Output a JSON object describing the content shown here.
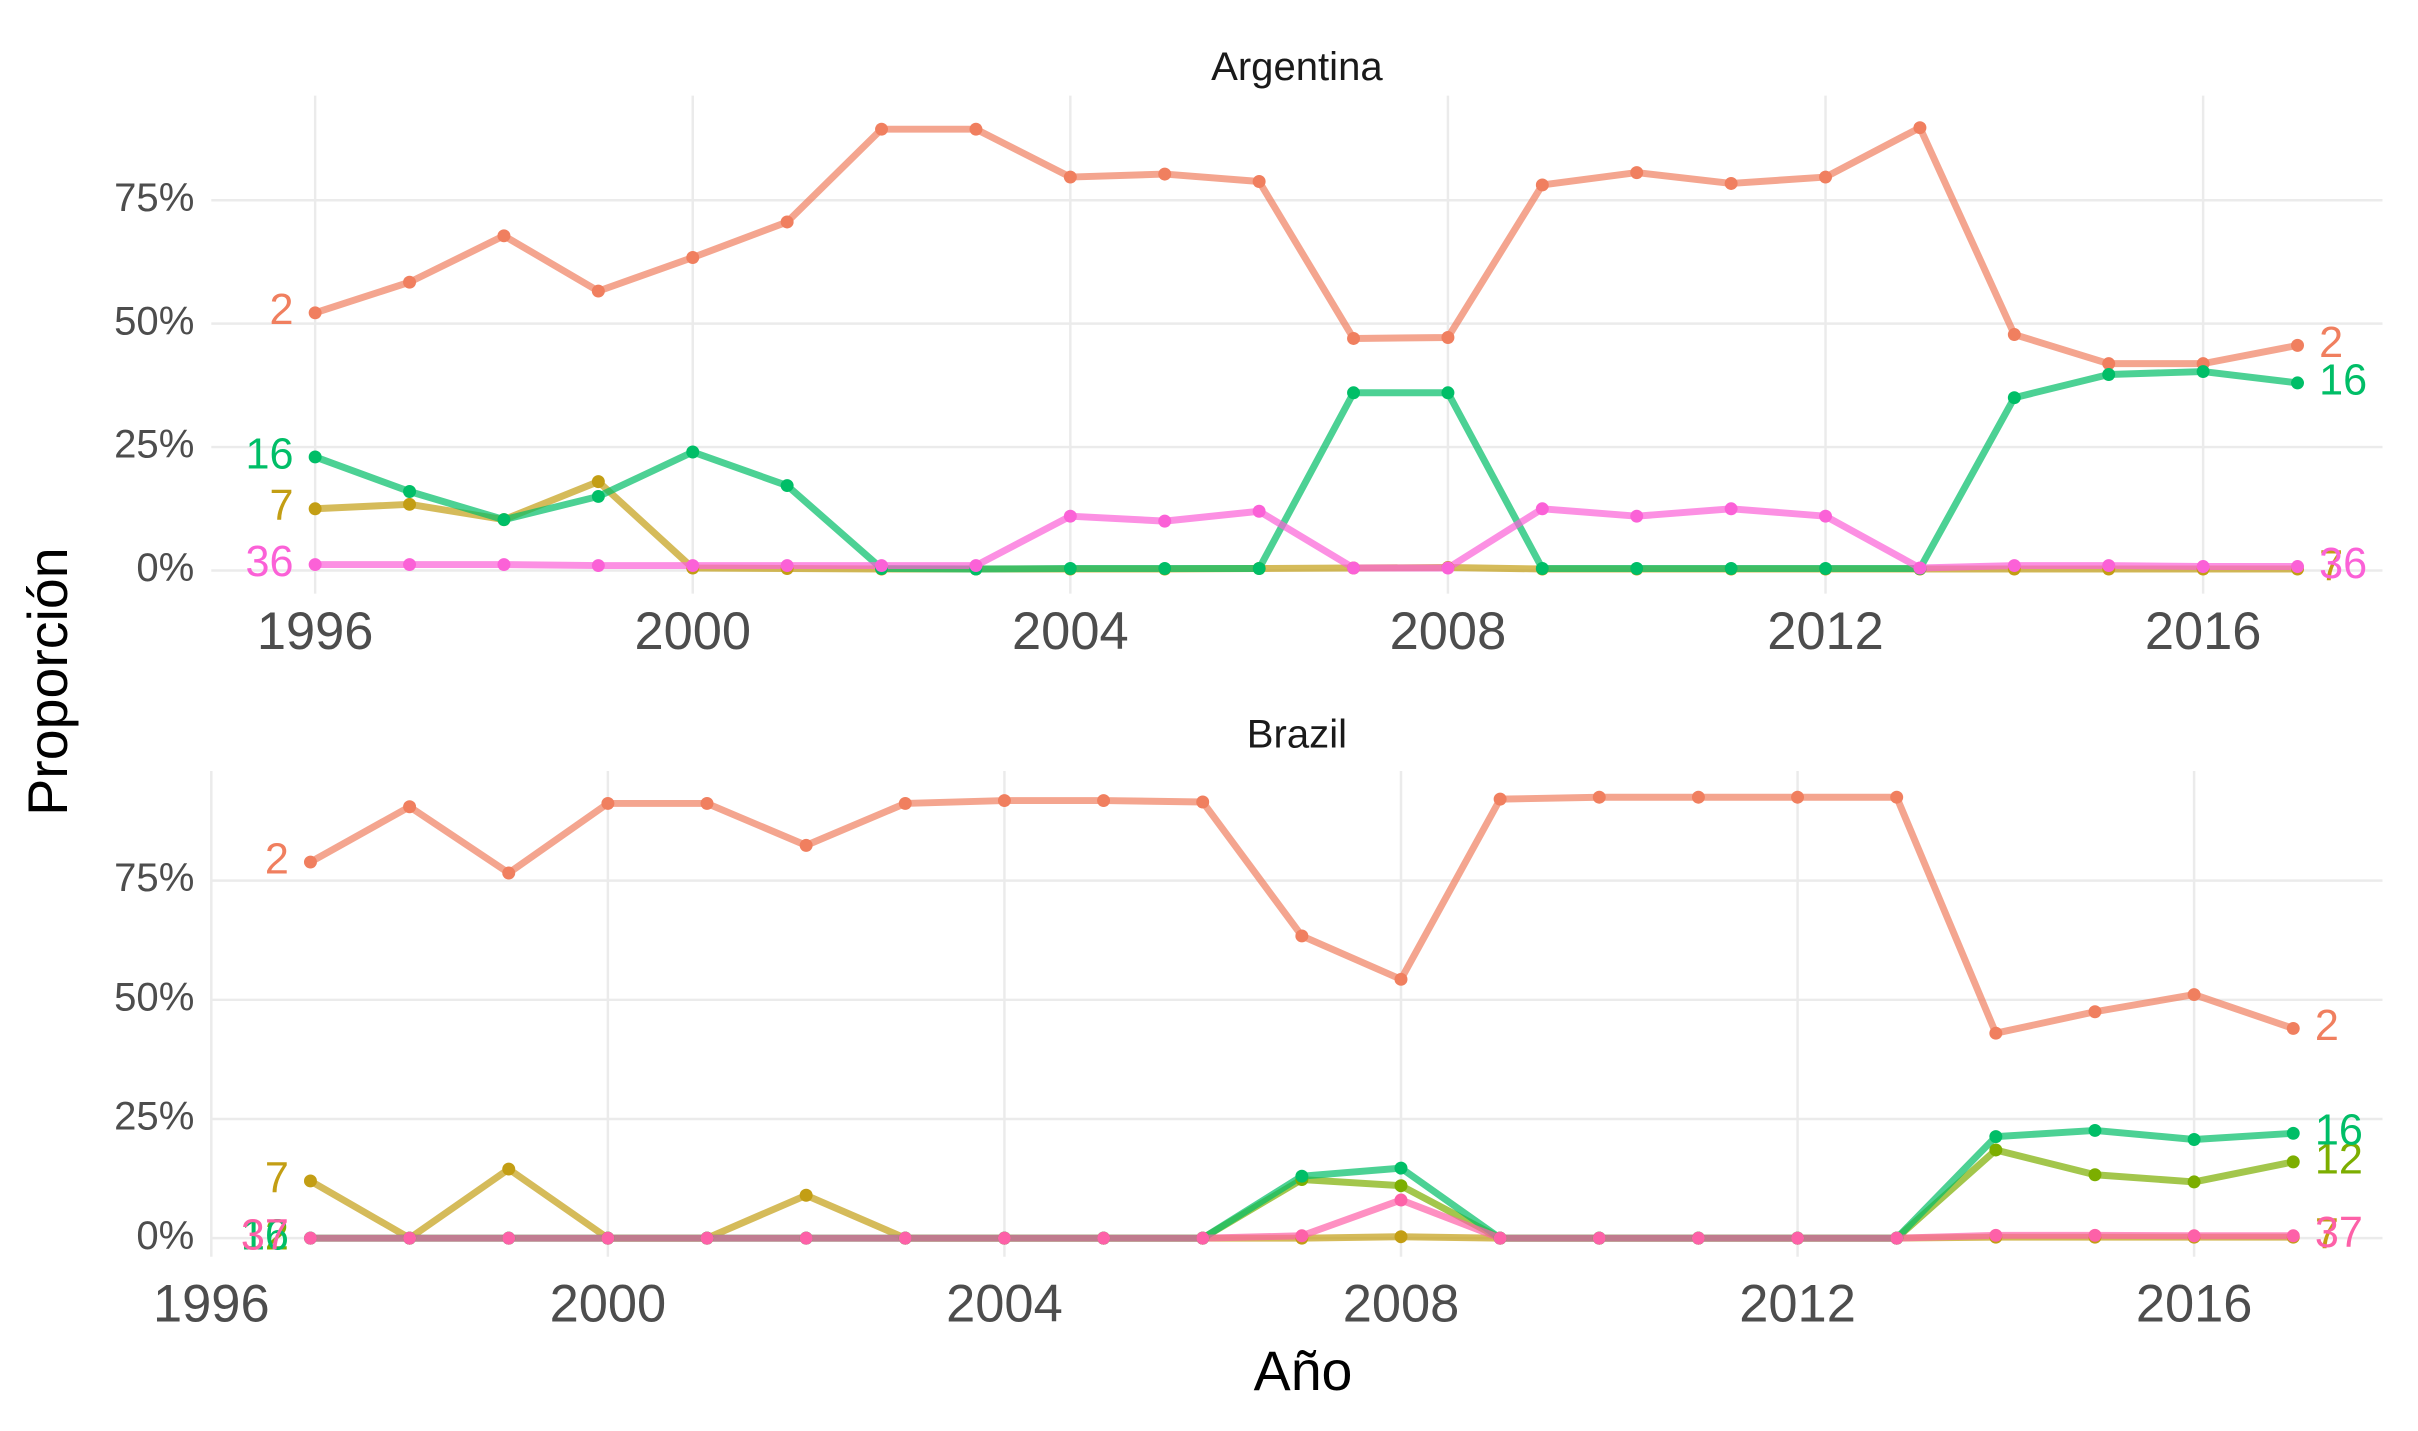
{
  "xlabel": "Año",
  "ylabel": "Proporción",
  "chart_data": [
    {
      "type": "line",
      "title": "Argentina",
      "x": [
        1996,
        1997,
        1998,
        1999,
        2000,
        2001,
        2002,
        2003,
        2004,
        2005,
        2006,
        2007,
        2008,
        2009,
        2010,
        2011,
        2012,
        2013,
        2014,
        2015,
        2016,
        2017
      ],
      "xlim": [
        1994.9,
        2017.9
      ],
      "xticks": [
        1996,
        2000,
        2004,
        2008,
        2012,
        2016
      ],
      "ylim": [
        -4.7,
        96.2
      ],
      "yticks": [
        {
          "value": 0,
          "label": "0%"
        },
        {
          "value": 25,
          "label": "25%"
        },
        {
          "value": 50,
          "label": "50%"
        },
        {
          "value": 75,
          "label": "75%"
        }
      ],
      "grid": true,
      "series": [
        {
          "name": "2",
          "color": "#f07f5f",
          "values": [
            52.2,
            58.4,
            67.8,
            56.6,
            63.4,
            70.6,
            89.4,
            89.4,
            79.7,
            80.3,
            78.8,
            47.0,
            47.2,
            78.1,
            80.6,
            78.4,
            79.7,
            89.7,
            47.8,
            41.9,
            41.9,
            45.6
          ]
        },
        {
          "name": "7",
          "color": "#c39e14",
          "values": [
            12.5,
            13.4,
            10.3,
            18,
            0.5,
            0.4,
            0.3,
            0.3,
            0.3,
            0.3,
            0.4,
            0.5,
            0.6,
            0.3,
            0.3,
            0.3,
            0.3,
            0.3,
            0.3,
            0.3,
            0.3,
            0.3
          ]
        },
        {
          "name": "16",
          "color": "#00be67",
          "values": [
            23,
            16,
            10.3,
            15,
            24,
            17.2,
            0.4,
            0.3,
            0.4,
            0.4,
            0.4,
            36,
            36,
            0.4,
            0.4,
            0.4,
            0.4,
            0.4,
            35,
            39.7,
            40.3,
            38
          ]
        },
        {
          "name": "36",
          "color": "#fb61d7",
          "values": [
            1.2,
            1.2,
            1.2,
            1,
            1,
            1,
            1,
            1,
            11,
            10,
            12,
            0.5,
            0.5,
            12.5,
            11,
            12.5,
            11,
            0.5,
            1,
            1,
            0.8,
            0.8
          ]
        }
      ]
    },
    {
      "type": "line",
      "title": "Brazil",
      "x": [
        1997,
        1998,
        1999,
        2000,
        2001,
        2002,
        2003,
        2004,
        2005,
        2006,
        2007,
        2008,
        2009,
        2010,
        2011,
        2012,
        2013,
        2014,
        2015,
        2016,
        2017
      ],
      "xlim": [
        1996,
        2017.9
      ],
      "xticks": [
        1996,
        2000,
        2004,
        2008,
        2012,
        2016
      ],
      "ylim": [
        -3.9,
        98
      ],
      "yticks": [
        {
          "value": 0,
          "label": "0%"
        },
        {
          "value": 25,
          "label": "25%"
        },
        {
          "value": 50,
          "label": "50%"
        },
        {
          "value": 75,
          "label": "75%"
        }
      ],
      "grid": true,
      "series": [
        {
          "name": "2",
          "color": "#f07f5f",
          "values": [
            78.9,
            90.5,
            76.6,
            91.2,
            91.2,
            82.4,
            91.2,
            91.8,
            91.8,
            91.5,
            63.4,
            54.3,
            92.1,
            92.5,
            92.5,
            92.5,
            92.5,
            43,
            47.5,
            51.1,
            44
          ]
        },
        {
          "name": "7",
          "color": "#c39e14",
          "values": [
            12,
            0,
            14.5,
            0,
            0,
            9,
            0,
            0,
            0,
            0,
            0,
            0.3,
            0,
            0,
            0,
            0,
            0,
            0.2,
            0.2,
            0.2,
            0.2
          ]
        },
        {
          "name": "12",
          "color": "#7cae00",
          "values": [
            0,
            0,
            0,
            0,
            0,
            0,
            0,
            0,
            0,
            0,
            12.3,
            11,
            0,
            0,
            0,
            0,
            0,
            18.5,
            13.3,
            11.8,
            16
          ]
        },
        {
          "name": "16",
          "color": "#00be67",
          "values": [
            0,
            0,
            0,
            0,
            0,
            0,
            0,
            0,
            0,
            0,
            13,
            14.7,
            0,
            0,
            0,
            0,
            0,
            21.3,
            22.6,
            20.7,
            22
          ]
        },
        {
          "name": "37",
          "color": "#fd61a8",
          "values": [
            0,
            0,
            0,
            0,
            0,
            0,
            0,
            0,
            0,
            0,
            0.5,
            8,
            0,
            0,
            0,
            0,
            0,
            0.6,
            0.6,
            0.5,
            0.5
          ]
        }
      ]
    }
  ]
}
